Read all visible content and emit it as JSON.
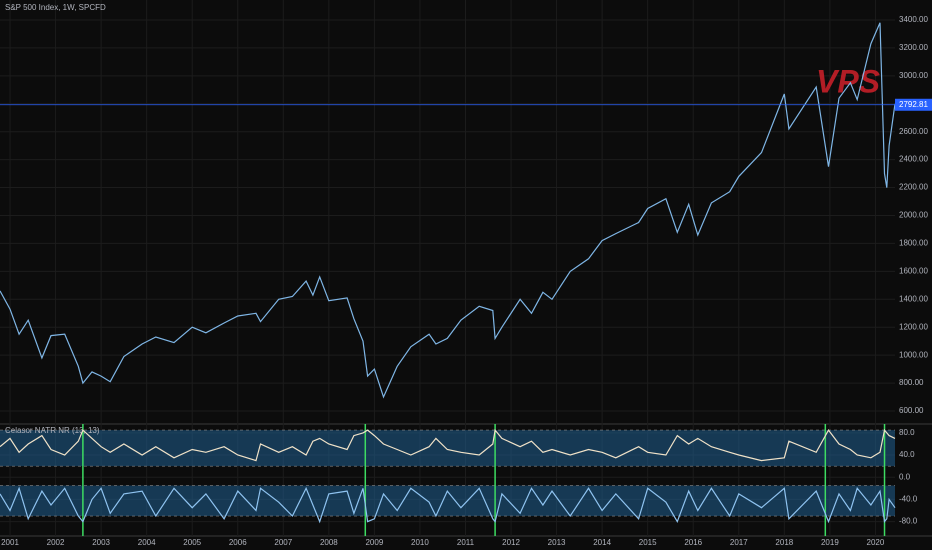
{
  "chart_data": [
    {
      "type": "line",
      "title": "S&P 500 Index, 1W, SPCFD",
      "watermark": "VPS",
      "grid": true,
      "x": [
        2000.78,
        2001.0,
        2001.2,
        2001.4,
        2001.7,
        2001.9,
        2002.2,
        2002.5,
        2002.6,
        2002.8,
        2003.0,
        2003.2,
        2003.5,
        2003.9,
        2004.2,
        2004.6,
        2005.0,
        2005.3,
        2005.7,
        2006.0,
        2006.4,
        2006.5,
        2006.9,
        2007.2,
        2007.5,
        2007.65,
        2007.8,
        2008.0,
        2008.4,
        2008.55,
        2008.75,
        2008.85,
        2009.0,
        2009.2,
        2009.5,
        2009.8,
        2010.2,
        2010.35,
        2010.6,
        2010.9,
        2011.3,
        2011.6,
        2011.65,
        2011.8,
        2012.2,
        2012.45,
        2012.7,
        2012.9,
        2013.3,
        2013.7,
        2014.0,
        2014.3,
        2014.8,
        2015.0,
        2015.4,
        2015.65,
        2015.9,
        2016.1,
        2016.4,
        2016.8,
        2017.0,
        2017.5,
        2018.0,
        2018.1,
        2018.7,
        2018.97,
        2019.2,
        2019.45,
        2019.6,
        2019.9,
        2020.1,
        2020.2,
        2020.25,
        2020.3,
        2020.43
      ],
      "series": [
        {
          "color": "#7fb6e6",
          "values": [
            1460,
            1330,
            1150,
            1250,
            980,
            1140,
            1150,
            920,
            800,
            880,
            850,
            810,
            990,
            1080,
            1130,
            1090,
            1200,
            1160,
            1230,
            1280,
            1300,
            1240,
            1400,
            1420,
            1530,
            1430,
            1560,
            1390,
            1410,
            1260,
            1100,
            850,
            900,
            700,
            920,
            1060,
            1150,
            1080,
            1120,
            1250,
            1350,
            1320,
            1120,
            1200,
            1400,
            1300,
            1450,
            1400,
            1600,
            1690,
            1820,
            1870,
            1950,
            2050,
            2120,
            1880,
            2080,
            1860,
            2090,
            2170,
            2280,
            2450,
            2870,
            2620,
            2920,
            2350,
            2840,
            2950,
            2830,
            3230,
            3380,
            2300,
            2200,
            2500,
            2800
          ]
        }
      ],
      "last_price": {
        "value": 2792.81,
        "label": "2792.81",
        "color": "#2962ff"
      },
      "xlim": [
        2000.78,
        2020.43
      ],
      "ylim": [
        507,
        3543
      ],
      "yticks": [
        {
          "value": 600,
          "label": "600.00"
        },
        {
          "value": 800,
          "label": "800.00"
        },
        {
          "value": 1000,
          "label": "1000.00"
        },
        {
          "value": 1200,
          "label": "1200.00"
        },
        {
          "value": 1400,
          "label": "1400.00"
        },
        {
          "value": 1600,
          "label": "1600.00"
        },
        {
          "value": 1800,
          "label": "1800.00"
        },
        {
          "value": 2000,
          "label": "2000.00"
        },
        {
          "value": 2200,
          "label": "2200.00"
        },
        {
          "value": 2400,
          "label": "2400.00"
        },
        {
          "value": 2600,
          "label": "2600.00"
        },
        {
          "value": 2800,
          "label": "2800.00"
        },
        {
          "value": 3000,
          "label": "3000.00"
        },
        {
          "value": 3200,
          "label": "3200.00"
        },
        {
          "value": 3400,
          "label": "3400.00"
        }
      ]
    },
    {
      "type": "line",
      "title": "Celasor NATR NR (13, 13)",
      "grid": true,
      "x": [
        2000.78,
        2001.0,
        2001.2,
        2001.4,
        2001.7,
        2001.9,
        2002.2,
        2002.5,
        2002.6,
        2002.8,
        2003.0,
        2003.2,
        2003.5,
        2003.9,
        2004.2,
        2004.6,
        2005.0,
        2005.3,
        2005.7,
        2006.0,
        2006.4,
        2006.5,
        2006.9,
        2007.2,
        2007.5,
        2007.65,
        2007.8,
        2008.0,
        2008.4,
        2008.55,
        2008.75,
        2008.85,
        2009.0,
        2009.2,
        2009.5,
        2009.8,
        2010.2,
        2010.35,
        2010.6,
        2010.9,
        2011.3,
        2011.6,
        2011.65,
        2011.8,
        2012.2,
        2012.45,
        2012.7,
        2012.9,
        2013.3,
        2013.7,
        2014.0,
        2014.3,
        2014.8,
        2015.0,
        2015.4,
        2015.65,
        2015.9,
        2016.1,
        2016.4,
        2016.8,
        2017.0,
        2017.5,
        2018.0,
        2018.1,
        2018.7,
        2018.97,
        2019.2,
        2019.45,
        2019.6,
        2019.9,
        2020.1,
        2020.2,
        2020.25,
        2020.3,
        2020.43
      ],
      "series": [
        {
          "color": "#f0e2c8",
          "values": [
            55,
            70,
            45,
            60,
            75,
            50,
            40,
            65,
            85,
            70,
            55,
            45,
            60,
            40,
            55,
            35,
            50,
            45,
            55,
            40,
            30,
            60,
            45,
            55,
            40,
            65,
            70,
            60,
            50,
            75,
            80,
            85,
            75,
            60,
            50,
            40,
            55,
            70,
            50,
            45,
            40,
            60,
            85,
            70,
            55,
            65,
            45,
            50,
            40,
            50,
            45,
            35,
            55,
            45,
            40,
            75,
            60,
            70,
            55,
            45,
            40,
            30,
            35,
            65,
            45,
            85,
            60,
            50,
            40,
            35,
            45,
            85,
            80,
            75,
            70
          ]
        },
        {
          "color": "#8fc3f0",
          "values": [
            -30,
            -60,
            -20,
            -75,
            -25,
            -50,
            -20,
            -70,
            -80,
            -40,
            -20,
            -65,
            -30,
            -25,
            -70,
            -20,
            -55,
            -30,
            -75,
            -25,
            -60,
            -20,
            -45,
            -70,
            -20,
            -50,
            -80,
            -30,
            -25,
            -65,
            -20,
            -80,
            -75,
            -30,
            -60,
            -20,
            -45,
            -70,
            -25,
            -55,
            -20,
            -75,
            -80,
            -30,
            -65,
            -20,
            -50,
            -25,
            -70,
            -20,
            -60,
            -30,
            -75,
            -20,
            -45,
            -80,
            -25,
            -60,
            -20,
            -70,
            -30,
            -55,
            -20,
            -75,
            -25,
            -80,
            -30,
            -60,
            -20,
            -50,
            -25,
            -80,
            -75,
            -40,
            -55
          ]
        }
      ],
      "bands": [
        [
          20,
          85
        ],
        [
          -70,
          -15
        ]
      ],
      "band_color": "#1f5f8f",
      "signals": [
        2002.6,
        2008.8,
        2011.65,
        2018.9,
        2020.2
      ],
      "signal_color": "#3ddc62",
      "xlim": [
        2000.78,
        2020.43
      ],
      "ylim": [
        -106,
        96
      ],
      "yticks": [
        {
          "value": 80,
          "label": "80.0"
        },
        {
          "value": 40,
          "label": "40.0"
        },
        {
          "value": 0,
          "label": "0.0"
        },
        {
          "value": -40,
          "label": "-40.0"
        },
        {
          "value": -80,
          "label": "-80.0"
        }
      ],
      "xticks": [
        2001,
        2002,
        2003,
        2004,
        2005,
        2006,
        2007,
        2008,
        2009,
        2010,
        2011,
        2012,
        2013,
        2014,
        2015,
        2016,
        2017,
        2018,
        2019,
        2020
      ]
    }
  ]
}
